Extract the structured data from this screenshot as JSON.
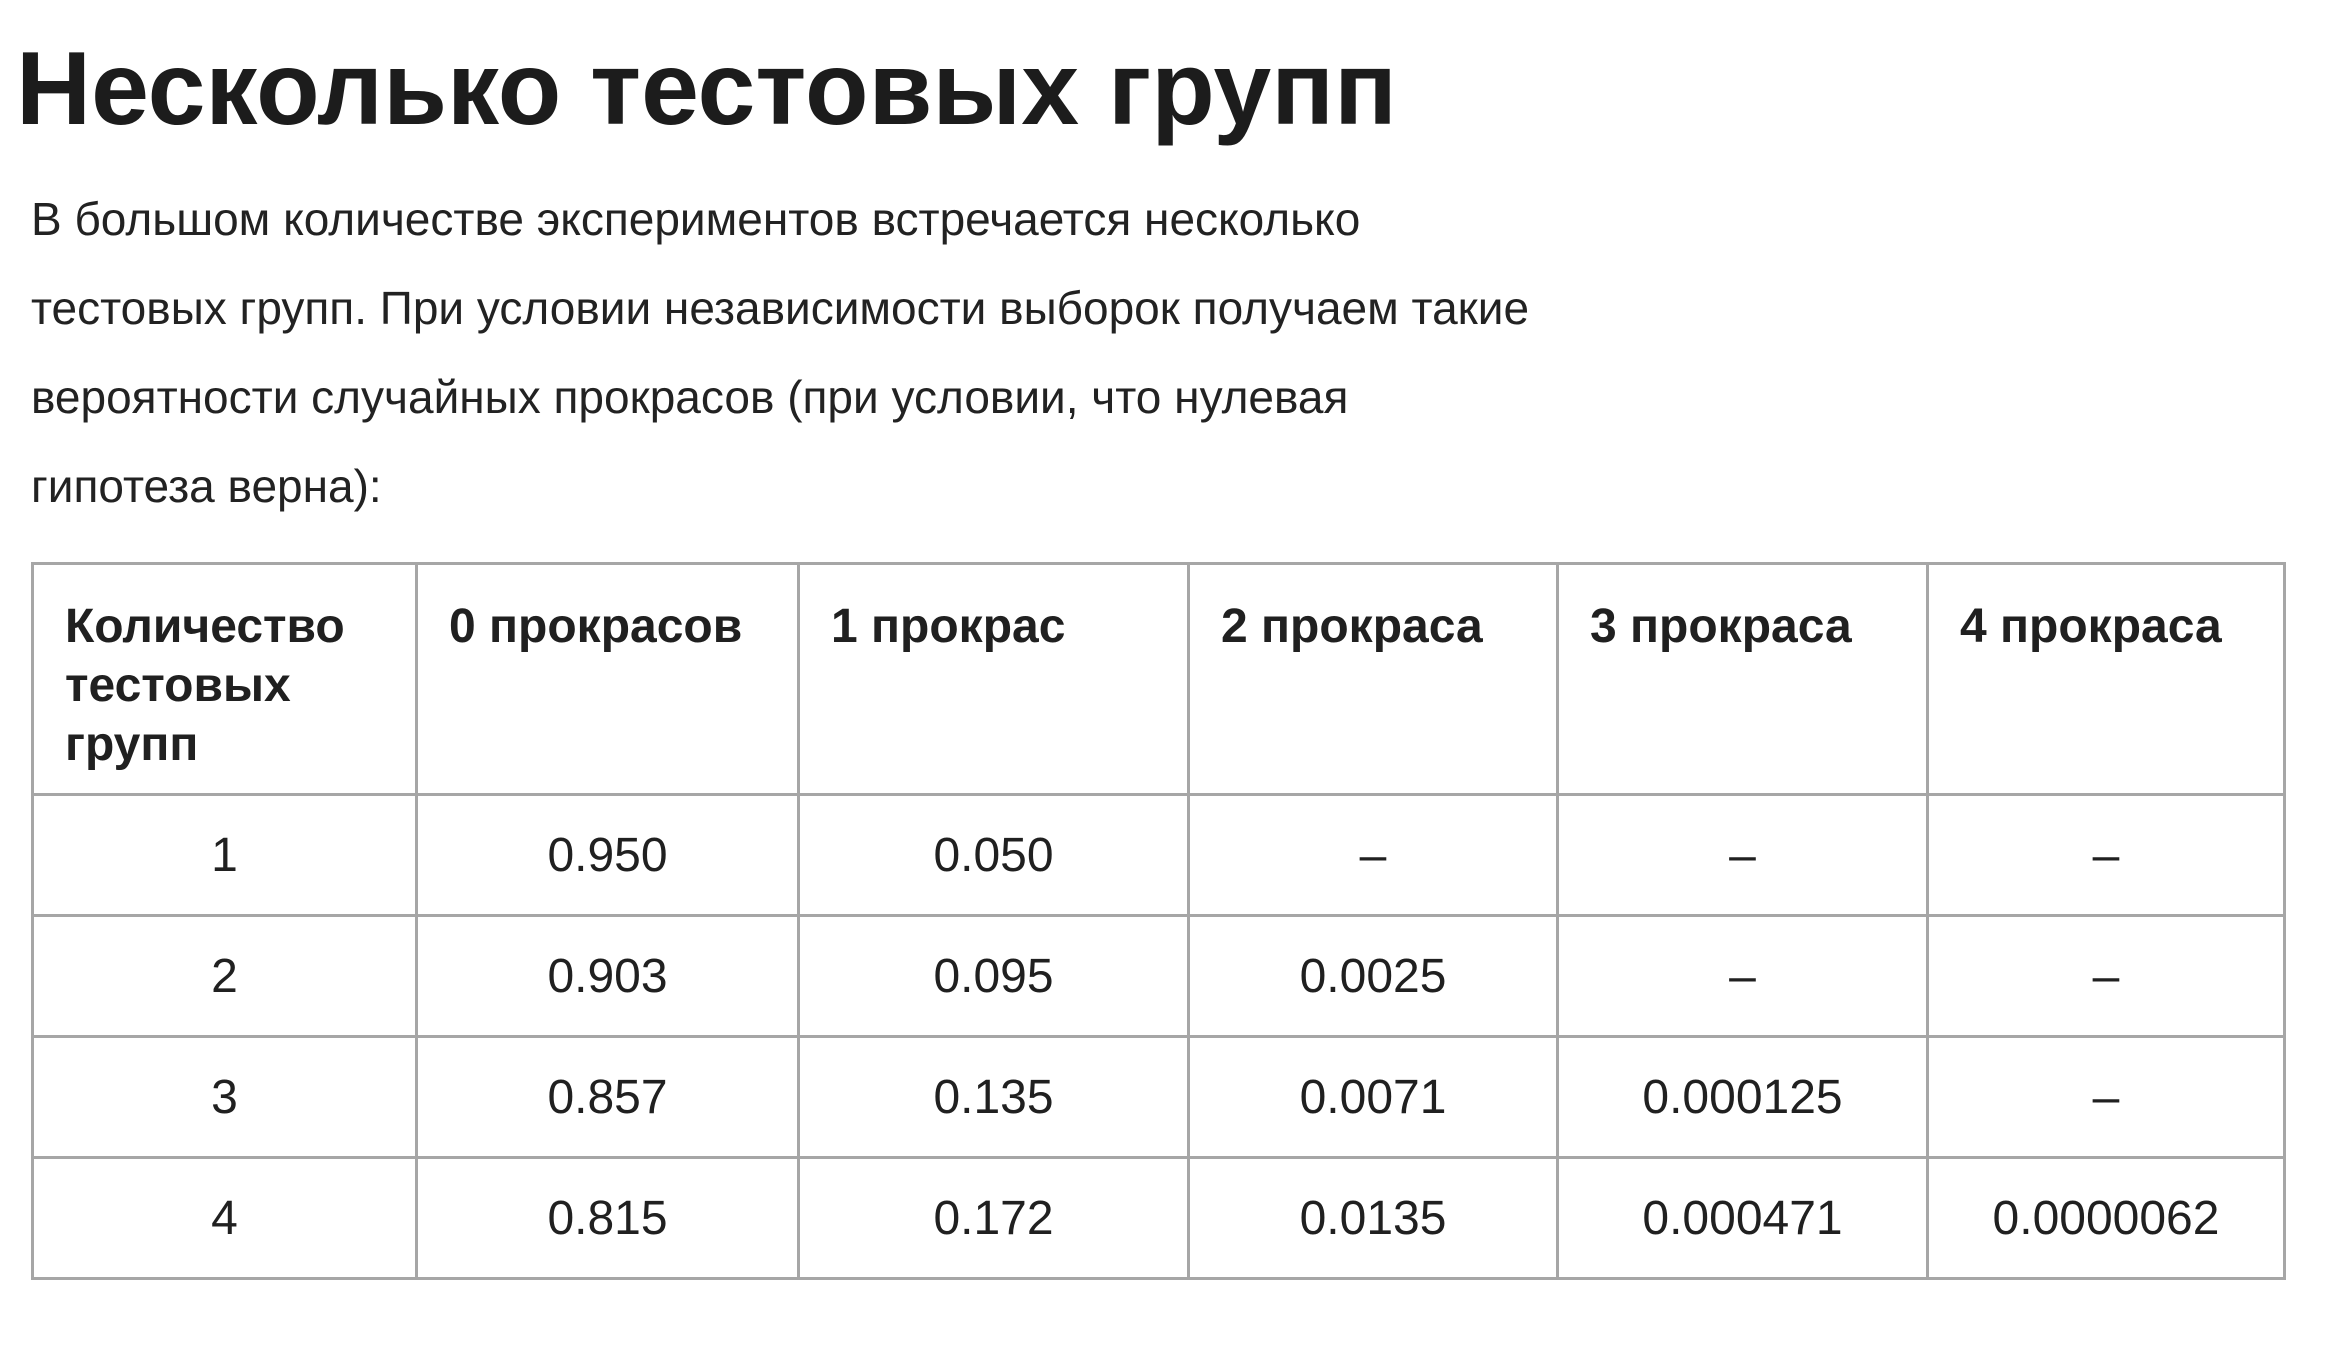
{
  "title": "Несколько тестовых групп",
  "intro": {
    "lines": [
      "В большом количестве экспериментов встречается несколько",
      "тестовых групп. При условии независимости выборок получаем такие",
      "вероятности случайных прокрасов (при условии, что  нулевая",
      "гипотеза верна):"
    ]
  },
  "table": {
    "headers": [
      "Количество тестовых групп",
      "0 прокрасов",
      "1 прокрас",
      "2 прокраса",
      "3 прокраса",
      "4 прокраса"
    ],
    "rows": [
      [
        "1",
        "0.950",
        "0.050",
        "–",
        "–",
        "–"
      ],
      [
        "2",
        "0.903",
        "0.095",
        "0.0025",
        "–",
        "–"
      ],
      [
        "3",
        "0.857",
        "0.135",
        "0.0071",
        "0.000125",
        "–"
      ],
      [
        "4",
        "0.815",
        "0.172",
        "0.0135",
        "0.000471",
        "0.0000062"
      ]
    ]
  }
}
